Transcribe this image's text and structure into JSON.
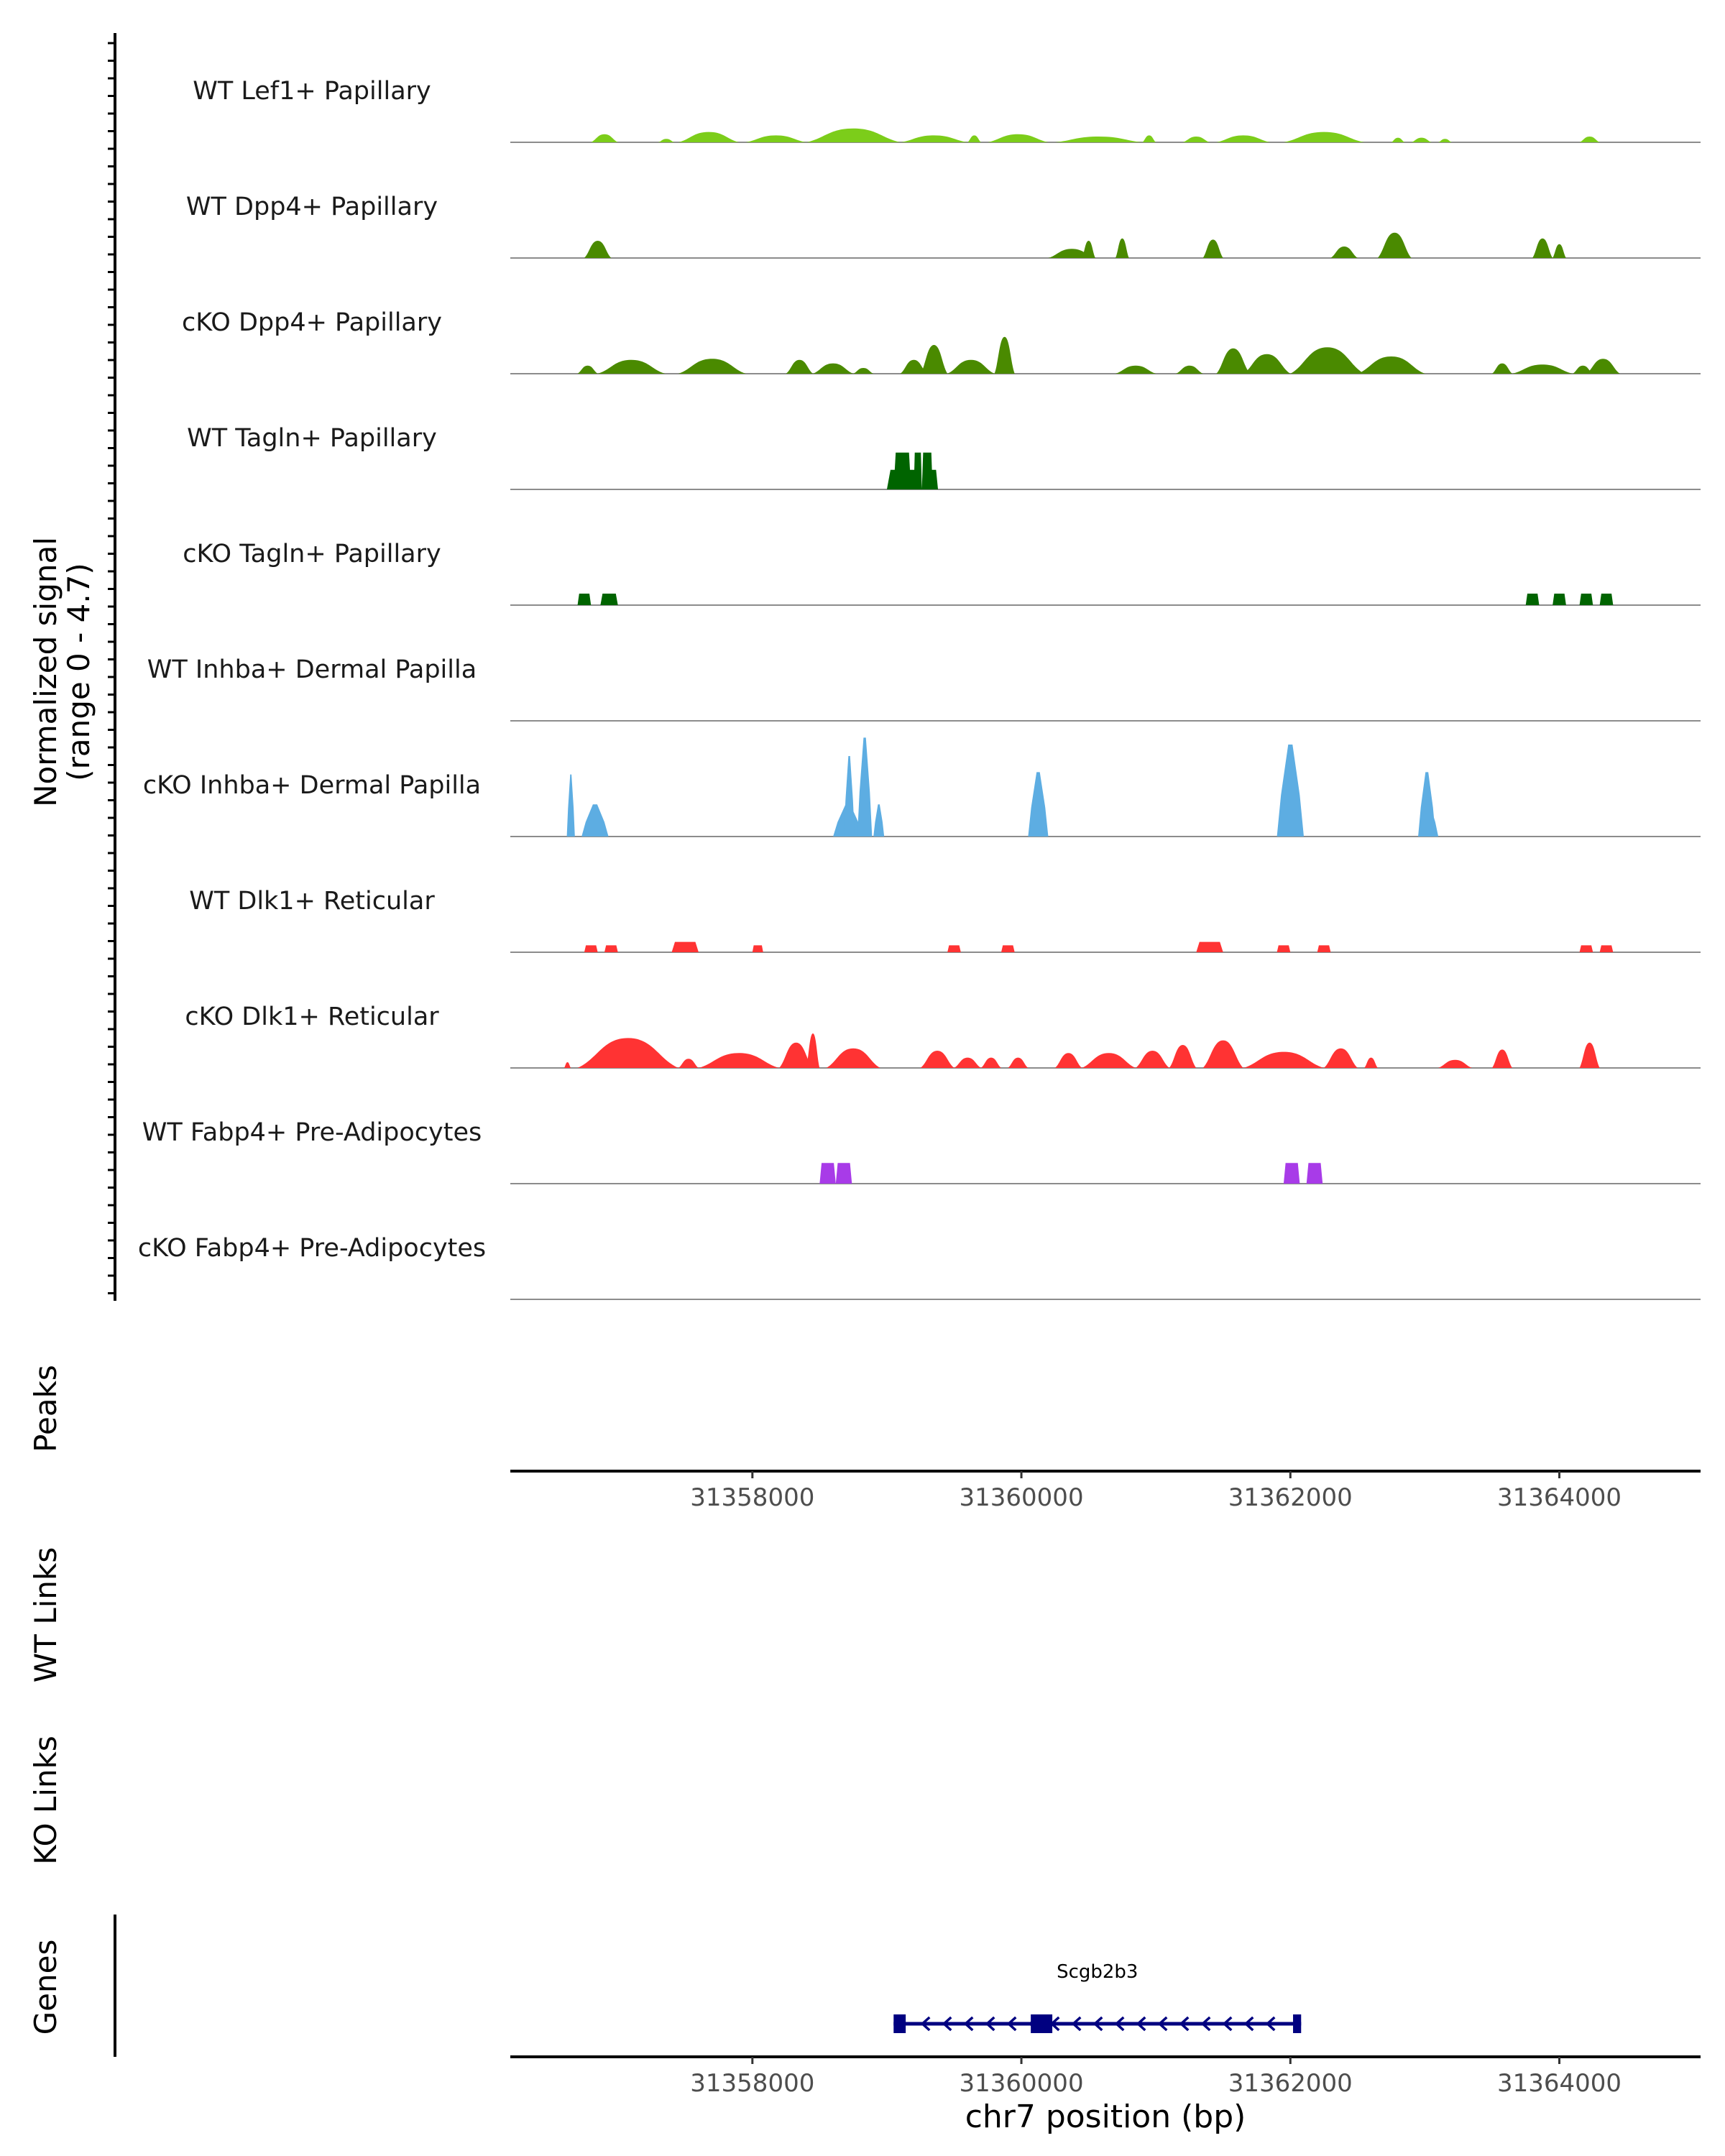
{
  "chart_data": {
    "type": "area",
    "title": "",
    "chromosome": "chr7",
    "xlabel": "chr7 position (bp)",
    "xlim": [
      31356200,
      31365050
    ],
    "x_ticks": [
      31358000,
      31360000,
      31362000,
      31364000
    ],
    "x_tick_labels": [
      "31358000",
      "31360000",
      "31362000",
      "31364000"
    ],
    "coverage_ylabel_line1": "Normalized signal",
    "coverage_ylabel_line2": "(range 0 - 4.7)",
    "ylim": [
      0,
      4.7
    ],
    "panel_labels": {
      "peaks": "Peaks",
      "wt_links": "WT Links",
      "ko_links": "KO Links",
      "genes": "Genes"
    },
    "tracks": [
      {
        "name": "WT Lef1+ Papillary",
        "color": "#7CCD1A",
        "shape": "smooth",
        "regions": [
          [
            31356800,
            31357000,
            0.35
          ],
          [
            31357300,
            31357420,
            0.15
          ],
          [
            31357450,
            31357900,
            0.45
          ],
          [
            31357950,
            31358400,
            0.3
          ],
          [
            31358400,
            31359100,
            0.6
          ],
          [
            31359100,
            31359600,
            0.3
          ],
          [
            31359600,
            31359700,
            0.3
          ],
          [
            31359750,
            31360200,
            0.35
          ],
          [
            31360250,
            31360900,
            0.25
          ],
          [
            31360900,
            31361000,
            0.3
          ],
          [
            31361200,
            31361400,
            0.25
          ],
          [
            31361450,
            31361850,
            0.3
          ],
          [
            31361950,
            31362550,
            0.45
          ],
          [
            31362750,
            31362850,
            0.2
          ],
          [
            31362900,
            31363050,
            0.2
          ],
          [
            31363100,
            31363200,
            0.15
          ],
          [
            31364150,
            31364300,
            0.25
          ]
        ]
      },
      {
        "name": "WT Dpp4+ Papillary",
        "color": "#4A8A00",
        "shape": "smooth",
        "regions": [
          [
            31356750,
            31356950,
            0.75
          ],
          [
            31360200,
            31360550,
            0.4
          ],
          [
            31360450,
            31360550,
            0.75
          ],
          [
            31360700,
            31360800,
            0.85
          ],
          [
            31361350,
            31361500,
            0.8
          ],
          [
            31362300,
            31362500,
            0.5
          ],
          [
            31362650,
            31362900,
            1.1
          ],
          [
            31363800,
            31363950,
            0.85
          ],
          [
            31363950,
            31364050,
            0.6
          ]
        ]
      },
      {
        "name": "cKO Dpp4+ Papillary",
        "color": "#4A8A00",
        "shape": "smooth",
        "regions": [
          [
            31356700,
            31356850,
            0.35
          ],
          [
            31356850,
            31357350,
            0.6
          ],
          [
            31357450,
            31357950,
            0.65
          ],
          [
            31358250,
            31358450,
            0.6
          ],
          [
            31358450,
            31358750,
            0.45
          ],
          [
            31358750,
            31358900,
            0.25
          ],
          [
            31359100,
            31359300,
            0.6
          ],
          [
            31359250,
            31359450,
            1.25
          ],
          [
            31359450,
            31359800,
            0.6
          ],
          [
            31359800,
            31359950,
            1.6
          ],
          [
            31360700,
            31361000,
            0.35
          ],
          [
            31361150,
            31361350,
            0.35
          ],
          [
            31361450,
            31361700,
            1.1
          ],
          [
            31361650,
            31362000,
            0.85
          ],
          [
            31362000,
            31362550,
            1.15
          ],
          [
            31362500,
            31363000,
            0.75
          ],
          [
            31363500,
            31363650,
            0.45
          ],
          [
            31363650,
            31364100,
            0.4
          ],
          [
            31364100,
            31364250,
            0.35
          ],
          [
            31364200,
            31364450,
            0.65
          ]
        ]
      },
      {
        "name": "WT Tagln+ Papillary",
        "color": "#006400",
        "shape": "block",
        "regions": [
          [
            31359000,
            31359260,
            0.85
          ],
          [
            31359050,
            31359180,
            1.6
          ],
          [
            31359200,
            31359260,
            1.6
          ],
          [
            31359260,
            31359340,
            1.6
          ],
          [
            31359260,
            31359380,
            0.85
          ]
        ]
      },
      {
        "name": "cKO Tagln+ Papillary",
        "color": "#006400",
        "shape": "block",
        "regions": [
          [
            31356700,
            31356800,
            0.5
          ],
          [
            31356870,
            31357000,
            0.5
          ],
          [
            31363750,
            31363850,
            0.5
          ],
          [
            31363950,
            31364050,
            0.5
          ],
          [
            31364150,
            31364250,
            0.5
          ],
          [
            31364300,
            31364400,
            0.5
          ]
        ]
      },
      {
        "name": "WT Inhba+ Dermal Papilla",
        "color": "#5DADE2",
        "shape": "block",
        "regions": []
      },
      {
        "name": "cKO Inhba+ Dermal Papilla",
        "color": "#5DADE2",
        "shape": "spike",
        "regions": [
          [
            31356620,
            31356680,
            2.7
          ],
          [
            31356730,
            31356930,
            1.4
          ],
          [
            31358600,
            31358820,
            1.4
          ],
          [
            31358680,
            31358760,
            3.5
          ],
          [
            31358780,
            31358890,
            4.3
          ],
          [
            31358900,
            31358980,
            1.4
          ],
          [
            31360050,
            31360200,
            2.8
          ],
          [
            31361900,
            31362100,
            4.0
          ],
          [
            31362950,
            31363080,
            2.8
          ],
          [
            31362950,
            31363100,
            1.4
          ]
        ]
      },
      {
        "name": "WT Dlk1+ Reticular",
        "color": "#FF3333",
        "shape": "block",
        "regions": [
          [
            31356750,
            31356850,
            0.3
          ],
          [
            31356900,
            31357000,
            0.3
          ],
          [
            31357400,
            31357600,
            0.45
          ],
          [
            31358000,
            31358080,
            0.3
          ],
          [
            31359450,
            31359550,
            0.3
          ],
          [
            31359850,
            31359950,
            0.3
          ],
          [
            31361300,
            31361500,
            0.45
          ],
          [
            31361900,
            31362000,
            0.3
          ],
          [
            31362200,
            31362300,
            0.3
          ],
          [
            31364150,
            31364250,
            0.3
          ],
          [
            31364300,
            31364400,
            0.3
          ]
        ]
      },
      {
        "name": "cKO Dlk1+ Reticular",
        "color": "#FF3333",
        "shape": "smooth",
        "regions": [
          [
            31356600,
            31356650,
            0.25
          ],
          [
            31356700,
            31357450,
            1.3
          ],
          [
            31357450,
            31357600,
            0.4
          ],
          [
            31357600,
            31358200,
            0.65
          ],
          [
            31358200,
            31358450,
            1.1
          ],
          [
            31358400,
            31358500,
            1.5
          ],
          [
            31358550,
            31358950,
            0.85
          ],
          [
            31359250,
            31359500,
            0.75
          ],
          [
            31359500,
            31359700,
            0.45
          ],
          [
            31359700,
            31359850,
            0.45
          ],
          [
            31359900,
            31360050,
            0.45
          ],
          [
            31360250,
            31360450,
            0.65
          ],
          [
            31360450,
            31360850,
            0.65
          ],
          [
            31360850,
            31361100,
            0.75
          ],
          [
            31361100,
            31361300,
            1.0
          ],
          [
            31361350,
            31361650,
            1.2
          ],
          [
            31361650,
            31362250,
            0.7
          ],
          [
            31362250,
            31362500,
            0.85
          ],
          [
            31362550,
            31362650,
            0.45
          ],
          [
            31363100,
            31363350,
            0.35
          ],
          [
            31363500,
            31363650,
            0.8
          ],
          [
            31364150,
            31364300,
            1.1
          ]
        ]
      },
      {
        "name": "WT Fabp4+ Pre-Adipocytes",
        "color": "#A83BE8",
        "shape": "block",
        "regions": [
          [
            31358500,
            31358620,
            0.9
          ],
          [
            31358620,
            31358740,
            0.9
          ],
          [
            31361950,
            31362070,
            0.9
          ],
          [
            31362120,
            31362240,
            0.9
          ]
        ]
      },
      {
        "name": "cKO Fabp4+ Pre-Adipocytes",
        "color": "#A83BE8",
        "shape": "block",
        "regions": []
      }
    ],
    "gene": {
      "name": "Scgb2b3",
      "start": 31359050,
      "end": 31362080,
      "strand": "-",
      "color": "#000080",
      "exons": [
        [
          31359050,
          31359140
        ],
        [
          31360070,
          31360230
        ],
        [
          31362020,
          31362080
        ]
      ]
    }
  }
}
